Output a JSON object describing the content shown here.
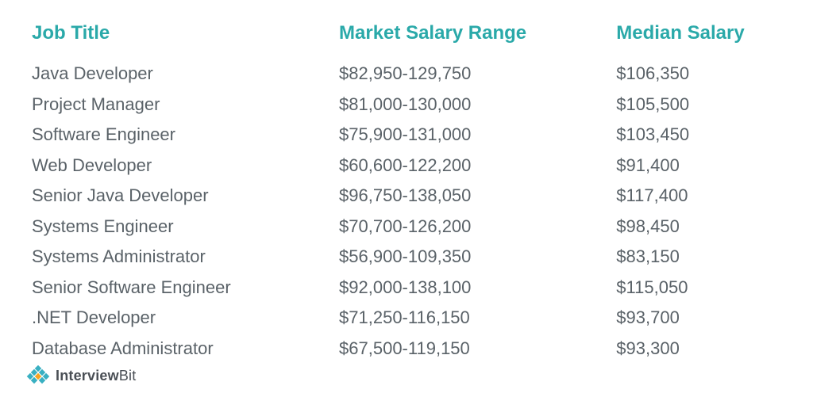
{
  "colors": {
    "header": "#2aa9a9",
    "body": "#5a6268",
    "logo_text": "#4a4f55",
    "logo_mark_primary": "#39b0c2",
    "logo_mark_accent": "#f6a321",
    "background": "#ffffff"
  },
  "typography": {
    "header_fontsize": 24,
    "header_weight": 700,
    "body_fontsize": 22,
    "body_line_height": 1.75,
    "logo_fontsize": 18
  },
  "table": {
    "columns": [
      {
        "key": "title",
        "label": "Job Title",
        "width_pct": 41
      },
      {
        "key": "range",
        "label": "Market Salary Range",
        "width_pct": 37
      },
      {
        "key": "median",
        "label": "Median Salary",
        "width_pct": 22
      }
    ],
    "rows": [
      {
        "title": "Java Developer",
        "range": "$82,950-129,750",
        "median": "$106,350"
      },
      {
        "title": "Project Manager",
        "range": "$81,000-130,000",
        "median": "$105,500"
      },
      {
        "title": "Software Engineer",
        "range": "$75,900-131,000",
        "median": "$103,450"
      },
      {
        "title": "Web Developer",
        "range": "$60,600-122,200",
        "median": "$91,400"
      },
      {
        "title": "Senior Java Developer",
        "range": "$96,750-138,050",
        "median": "$117,400"
      },
      {
        "title": "Systems Engineer",
        "range": "$70,700-126,200",
        "median": "$98,450"
      },
      {
        "title": "Systems Administrator",
        "range": "$56,900-109,350",
        "median": "$83,150"
      },
      {
        "title": "Senior Software Engineer",
        "range": "$92,000-138,100",
        "median": "$115,050"
      },
      {
        "title": ".NET Developer",
        "range": "$71,250-116,150",
        "median": "$93,700"
      },
      {
        "title": "Database Administrator",
        "range": "$67,500-119,150",
        "median": "$93,300"
      }
    ]
  },
  "logo": {
    "brand_bold": "Interview",
    "brand_light": "Bit"
  }
}
